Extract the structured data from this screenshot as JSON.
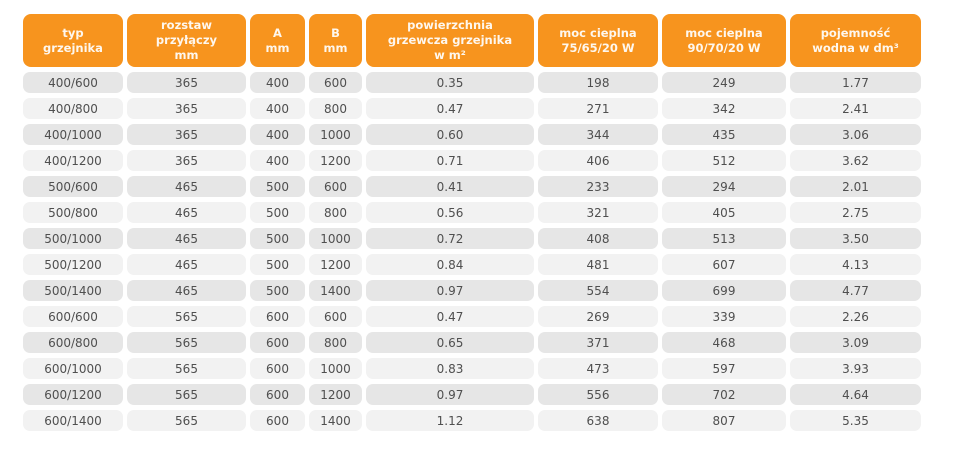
{
  "theme": {
    "page_bg": "#ffffff",
    "header_bg": "#f7941e",
    "header_text": "#fef7ee",
    "row_odd_bg": "#e6e6e6",
    "row_even_bg": "#f2f2f2",
    "cell_text": "#4f4f4f"
  },
  "chart_data": {
    "type": "table",
    "columns": [
      {
        "key": "typ",
        "label": "typ\ngrzejnika"
      },
      {
        "key": "rozstaw",
        "label": "rozstaw\nprzyłączy\nmm"
      },
      {
        "key": "a_mm",
        "label": "A\nmm"
      },
      {
        "key": "b_mm",
        "label": "B\nmm"
      },
      {
        "key": "powierzchnia",
        "label": "powierzchnia\ngrzewcza grzejnika\nw m²"
      },
      {
        "key": "moc_75",
        "label": "moc cieplna\n75/65/20 W"
      },
      {
        "key": "moc_90",
        "label": "moc cieplna\n90/70/20 W"
      },
      {
        "key": "pojemnosc",
        "label": "pojemność\nwodna w dm³"
      }
    ],
    "rows": [
      [
        "400/600",
        "365",
        "400",
        "600",
        "0.35",
        "198",
        "249",
        "1.77"
      ],
      [
        "400/800",
        "365",
        "400",
        "800",
        "0.47",
        "271",
        "342",
        "2.41"
      ],
      [
        "400/1000",
        "365",
        "400",
        "1000",
        "0.60",
        "344",
        "435",
        "3.06"
      ],
      [
        "400/1200",
        "365",
        "400",
        "1200",
        "0.71",
        "406",
        "512",
        "3.62"
      ],
      [
        "500/600",
        "465",
        "500",
        "600",
        "0.41",
        "233",
        "294",
        "2.01"
      ],
      [
        "500/800",
        "465",
        "500",
        "800",
        "0.56",
        "321",
        "405",
        "2.75"
      ],
      [
        "500/1000",
        "465",
        "500",
        "1000",
        "0.72",
        "408",
        "513",
        "3.50"
      ],
      [
        "500/1200",
        "465",
        "500",
        "1200",
        "0.84",
        "481",
        "607",
        "4.13"
      ],
      [
        "500/1400",
        "465",
        "500",
        "1400",
        "0.97",
        "554",
        "699",
        "4.77"
      ],
      [
        "600/600",
        "565",
        "600",
        "600",
        "0.47",
        "269",
        "339",
        "2.26"
      ],
      [
        "600/800",
        "565",
        "600",
        "800",
        "0.65",
        "371",
        "468",
        "3.09"
      ],
      [
        "600/1000",
        "565",
        "600",
        "1000",
        "0.83",
        "473",
        "597",
        "3.93"
      ],
      [
        "600/1200",
        "565",
        "600",
        "1200",
        "0.97",
        "556",
        "702",
        "4.64"
      ],
      [
        "600/1400",
        "565",
        "600",
        "1400",
        "1.12",
        "638",
        "807",
        "5.35"
      ]
    ]
  }
}
